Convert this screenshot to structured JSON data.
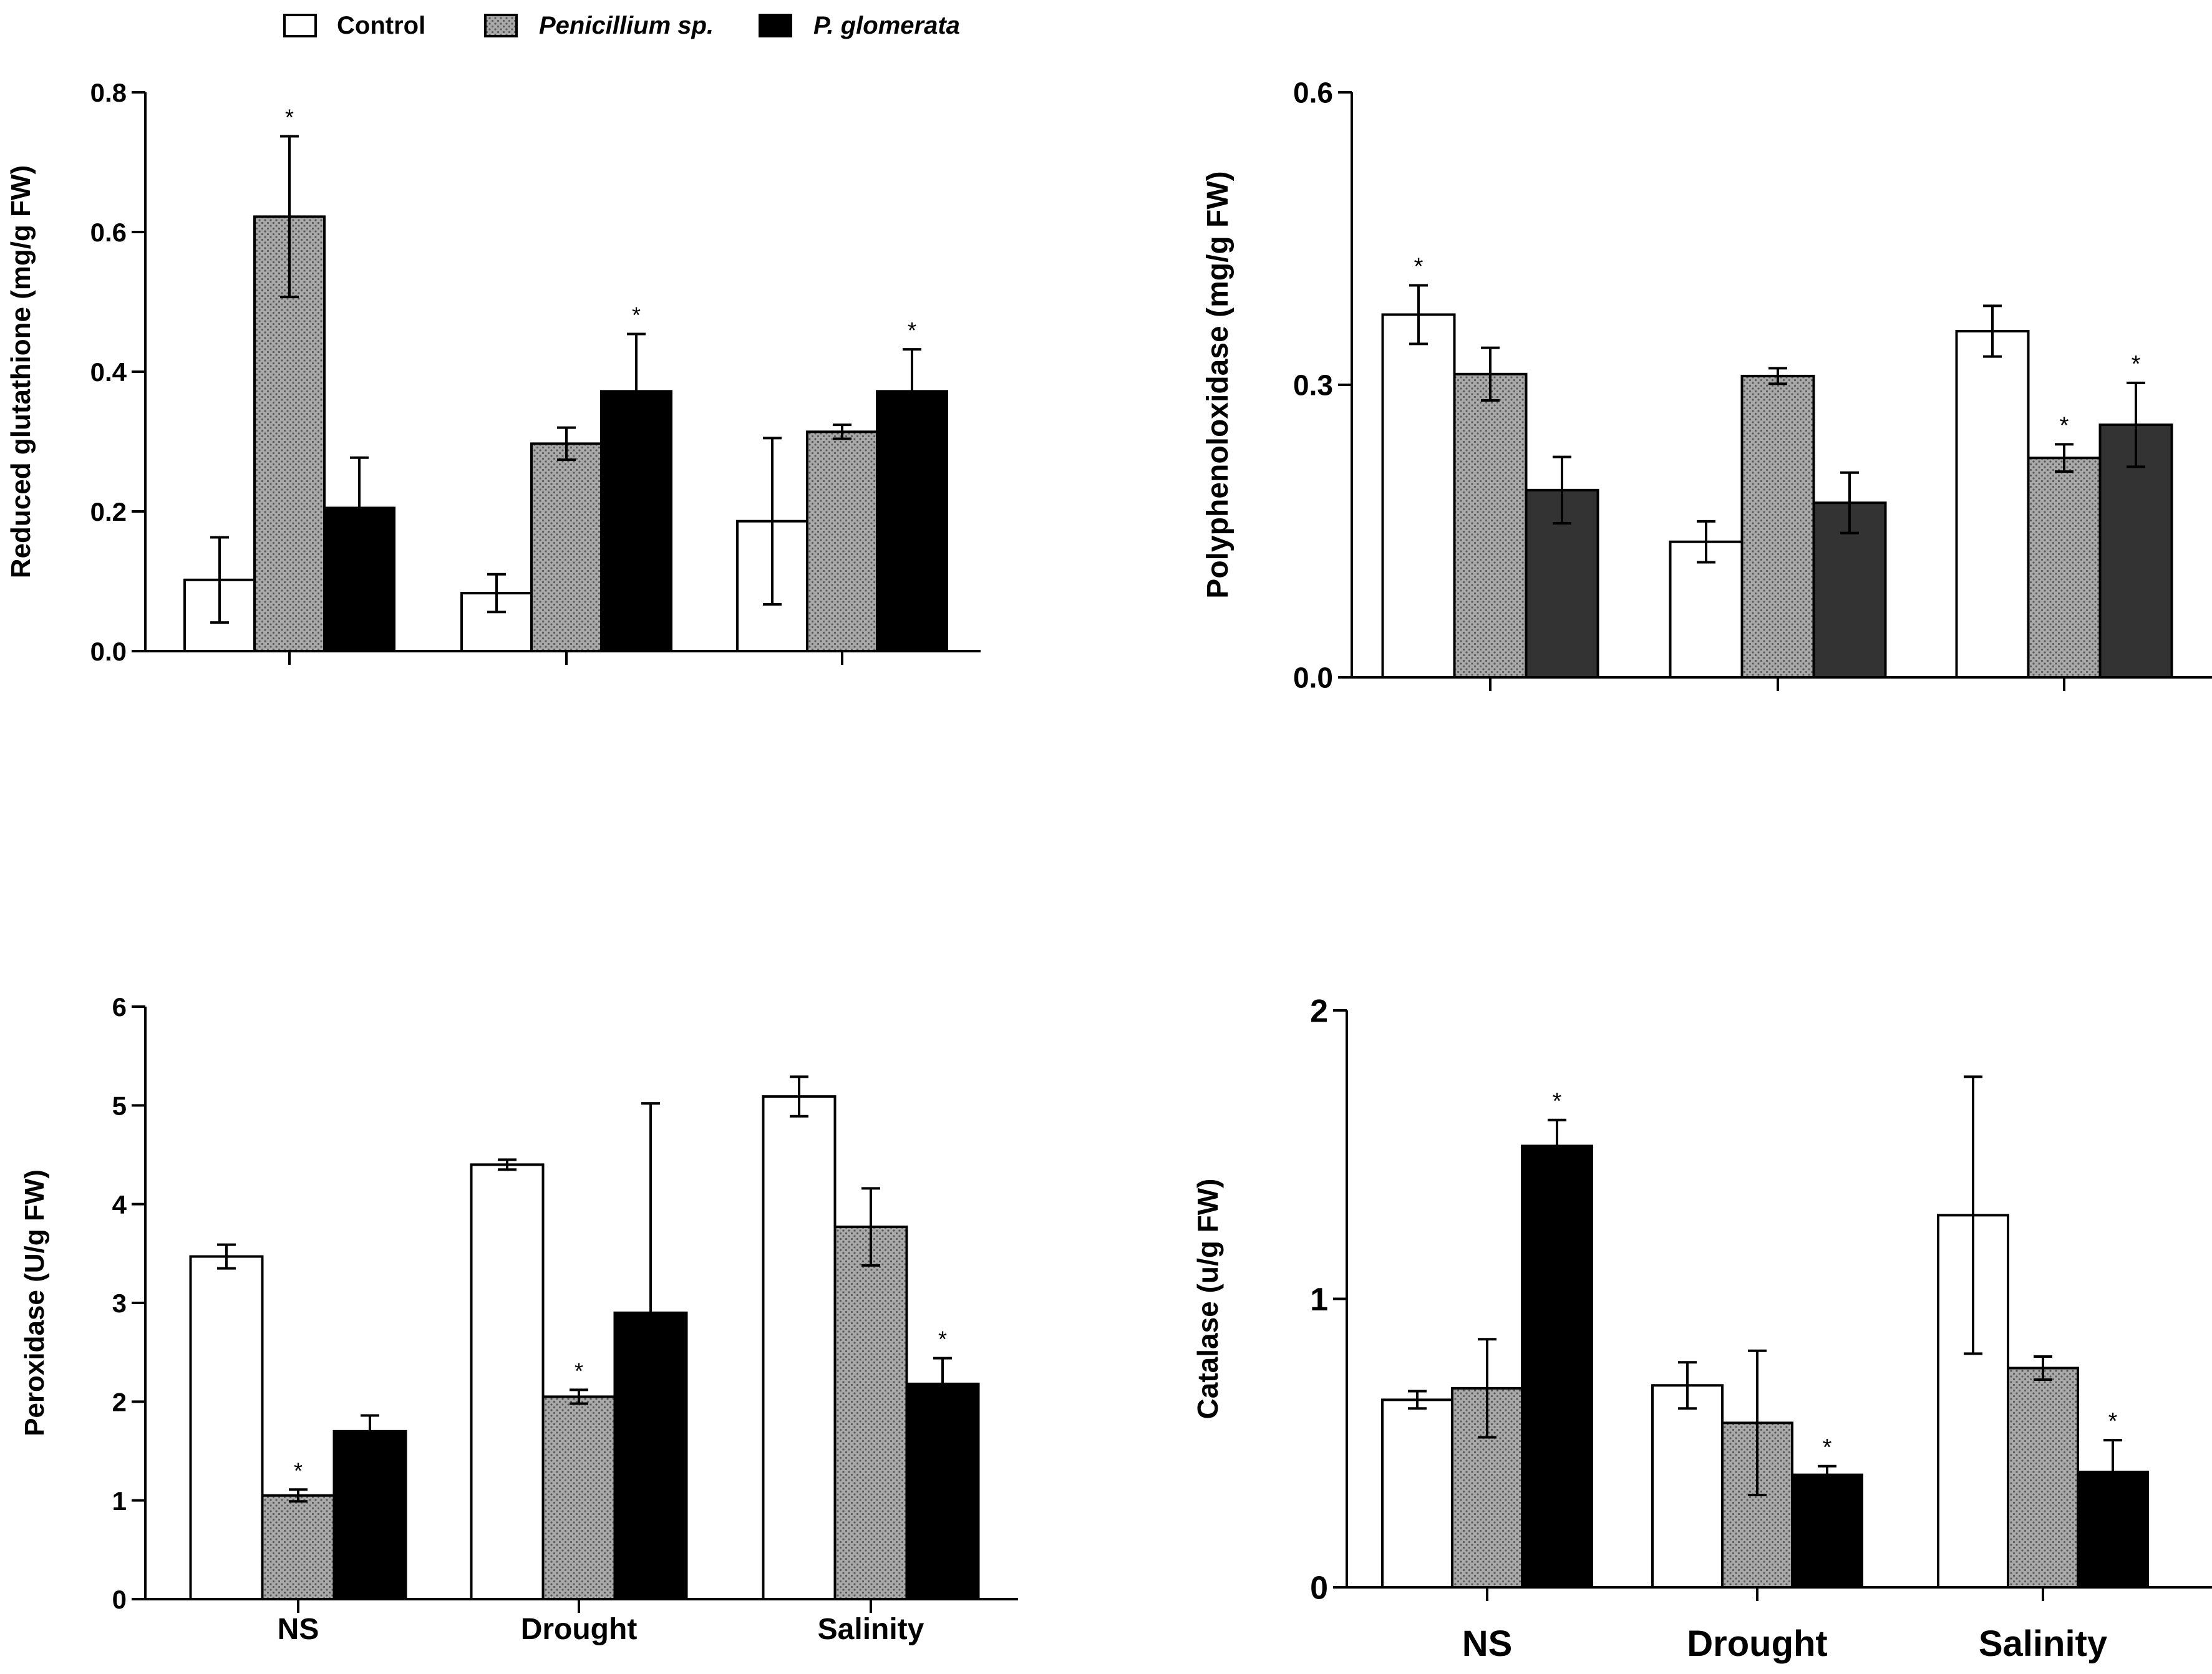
{
  "legend": {
    "items": [
      {
        "label": "Control",
        "style": "white",
        "italic": false
      },
      {
        "label": "Penicillium sp.",
        "style": "dotted",
        "italic": true
      },
      {
        "label": "P. glomerata",
        "style": "black",
        "italic": true
      }
    ]
  },
  "colors": {
    "white": "#ffffff",
    "dotted": "#a9a9a9",
    "black": "#000000",
    "darkgray": "#333333",
    "dot": "#5a5a5a"
  },
  "chart_data": [
    {
      "id": "gsh",
      "type": "bar",
      "ylabel": "Reduced glutathione (mg/g FW)",
      "ylim": [
        0,
        0.8
      ],
      "yticks": [
        "0.0",
        "0.2",
        "0.4",
        "0.6",
        "0.8"
      ],
      "categories": [
        "",
        "",
        ""
      ],
      "series": [
        {
          "name": "Control",
          "style": "white",
          "values": [
            0.102,
            0.083,
            0.186
          ],
          "errors": [
            0.061,
            0.027,
            0.119
          ],
          "stars": [
            false,
            false,
            false
          ]
        },
        {
          "name": "Penicillium sp.",
          "style": "dotted",
          "values": [
            0.622,
            0.297,
            0.314
          ],
          "errors": [
            0.115,
            0.023,
            0.01
          ],
          "stars": [
            true,
            false,
            false
          ]
        },
        {
          "name": "P. glomerata",
          "style": "black",
          "values": [
            0.205,
            0.372,
            0.372
          ],
          "errors": [
            0.072,
            0.082,
            0.06
          ],
          "stars": [
            false,
            true,
            true
          ]
        }
      ]
    },
    {
      "id": "ppo",
      "type": "bar",
      "ylabel": "Polyphenoloxidase (mg/g FW)",
      "ylim": [
        0,
        0.6
      ],
      "yticks": [
        "0.0",
        "0.3",
        "0.6"
      ],
      "categories": [
        "",
        "",
        ""
      ],
      "series": [
        {
          "name": "Control",
          "style": "white",
          "values": [
            0.372,
            0.139,
            0.355
          ],
          "errors": [
            0.03,
            0.021,
            0.026
          ],
          "stars": [
            true,
            false,
            false
          ]
        },
        {
          "name": "Penicillium sp.",
          "style": "dotted",
          "values": [
            0.311,
            0.309,
            0.225
          ],
          "errors": [
            0.027,
            0.008,
            0.014
          ],
          "stars": [
            false,
            false,
            true
          ]
        },
        {
          "name": "P. glomerata",
          "style": "darkgray",
          "values": [
            0.192,
            0.179,
            0.259
          ],
          "errors": [
            0.034,
            0.031,
            0.043
          ],
          "stars": [
            false,
            false,
            true
          ]
        }
      ]
    },
    {
      "id": "pod",
      "type": "bar",
      "ylabel": "Peroxidase (U/g FW)",
      "ylim": [
        0,
        6
      ],
      "yticks": [
        "0",
        "1",
        "2",
        "3",
        "4",
        "5",
        "6"
      ],
      "categories": [
        "NS",
        "Drought",
        "Salinity"
      ],
      "series": [
        {
          "name": "Control",
          "style": "white",
          "values": [
            3.47,
            4.4,
            5.09
          ],
          "errors": [
            0.12,
            0.05,
            0.2
          ],
          "stars": [
            false,
            false,
            false
          ]
        },
        {
          "name": "Penicillium sp.",
          "style": "dotted",
          "values": [
            1.05,
            2.05,
            3.77
          ],
          "errors": [
            0.06,
            0.07,
            0.39
          ],
          "stars": [
            true,
            true,
            false
          ]
        },
        {
          "name": "P. glomerata",
          "style": "black",
          "values": [
            1.7,
            2.9,
            2.18
          ],
          "errors": [
            0.16,
            2.12,
            0.26
          ],
          "stars": [
            false,
            false,
            true
          ]
        }
      ]
    },
    {
      "id": "cat",
      "type": "bar",
      "ylabel": "Catalase (u/g FW)",
      "ylim": [
        0,
        2
      ],
      "yticks": [
        "0",
        "1",
        "2"
      ],
      "categories": [
        "NS",
        "Drought",
        "Salinity"
      ],
      "series": [
        {
          "name": "Control",
          "style": "white",
          "values": [
            0.65,
            0.7,
            1.29
          ],
          "errors": [
            0.03,
            0.08,
            0.48
          ],
          "stars": [
            false,
            false,
            false
          ]
        },
        {
          "name": "Penicillium sp.",
          "style": "dotted",
          "values": [
            0.69,
            0.57,
            0.76
          ],
          "errors": [
            0.17,
            0.25,
            0.04
          ],
          "stars": [
            false,
            false,
            false
          ]
        },
        {
          "name": "P. glomerata",
          "style": "black",
          "values": [
            1.53,
            0.39,
            0.4
          ],
          "errors": [
            0.09,
            0.03,
            0.11
          ],
          "stars": [
            true,
            true,
            true
          ]
        }
      ]
    }
  ]
}
